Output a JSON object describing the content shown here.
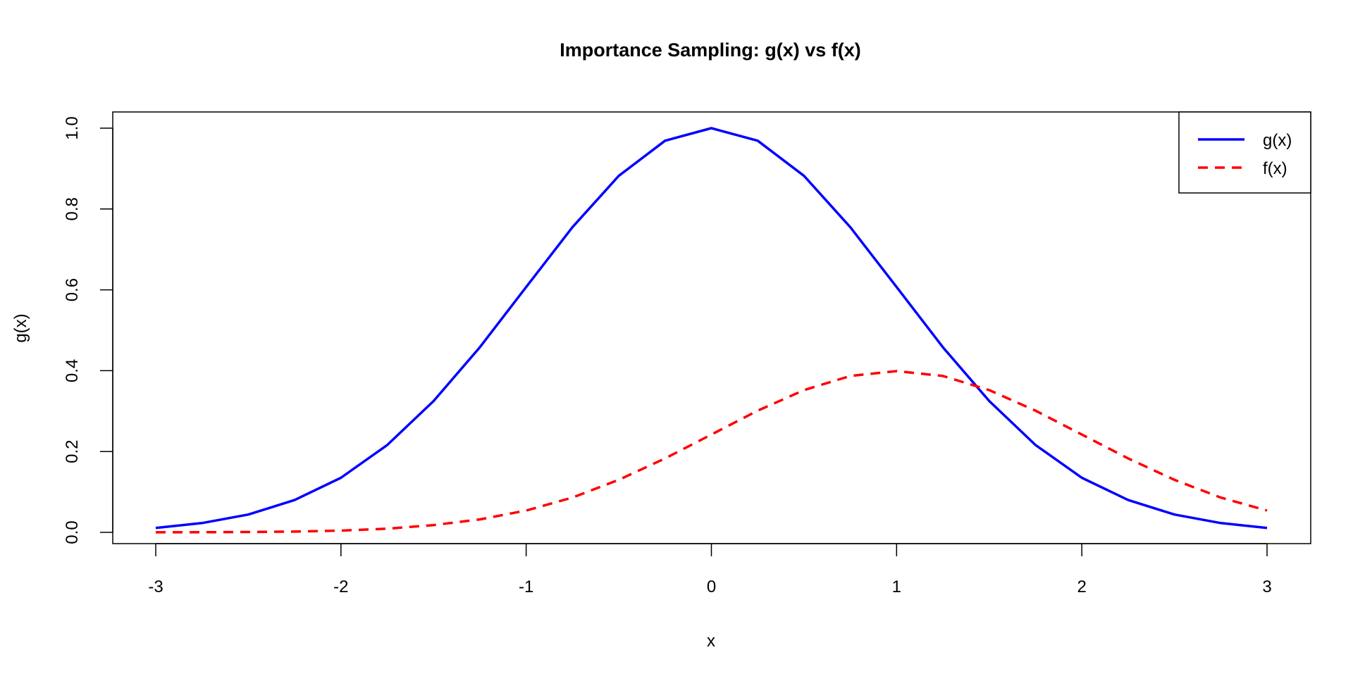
{
  "chart_data": {
    "type": "line",
    "title": "Importance Sampling: g(x) vs f(x)",
    "xlabel": "x",
    "ylabel": "g(x)",
    "xlim": [
      -3,
      3
    ],
    "ylim": [
      0,
      1
    ],
    "x_ticks": [
      -3,
      -2,
      -1,
      0,
      1,
      2,
      3
    ],
    "x_tick_labels": [
      "-3",
      "-2",
      "-1",
      "0",
      "1",
      "2",
      "3"
    ],
    "y_ticks": [
      0,
      0.2,
      0.4,
      0.6,
      0.8,
      1
    ],
    "y_tick_labels": [
      "0.0",
      "0.2",
      "0.4",
      "0.6",
      "0.8",
      "1.0"
    ],
    "grid": false,
    "legend_position": "top-right",
    "series": [
      {
        "name": "g(x)",
        "color": "#0000ff",
        "style": "solid",
        "x": [
          -3,
          -2.75,
          -2.5,
          -2.25,
          -2,
          -1.75,
          -1.5,
          -1.25,
          -1,
          -0.75,
          -0.5,
          -0.25,
          0,
          0.25,
          0.5,
          0.75,
          1,
          1.25,
          1.5,
          1.75,
          2,
          2.25,
          2.5,
          2.75,
          3
        ],
        "values": [
          0.011,
          0.023,
          0.044,
          0.08,
          0.135,
          0.216,
          0.325,
          0.458,
          0.607,
          0.755,
          0.882,
          0.969,
          1.0,
          0.969,
          0.882,
          0.755,
          0.607,
          0.458,
          0.325,
          0.216,
          0.135,
          0.08,
          0.044,
          0.023,
          0.011
        ]
      },
      {
        "name": "f(x)",
        "color": "#ff0000",
        "style": "dashed",
        "x": [
          -3,
          -2.75,
          -2.5,
          -2.25,
          -2,
          -1.75,
          -1.5,
          -1.25,
          -1,
          -0.75,
          -0.5,
          -0.25,
          0,
          0.25,
          0.5,
          0.75,
          1,
          1.25,
          1.5,
          1.75,
          2,
          2.25,
          2.5,
          2.75,
          3
        ],
        "values": [
          0.0001,
          0.0004,
          0.0009,
          0.002,
          0.0044,
          0.009,
          0.018,
          0.032,
          0.054,
          0.086,
          0.13,
          0.183,
          0.242,
          0.301,
          0.352,
          0.387,
          0.399,
          0.387,
          0.352,
          0.301,
          0.242,
          0.183,
          0.13,
          0.086,
          0.054
        ]
      }
    ]
  }
}
